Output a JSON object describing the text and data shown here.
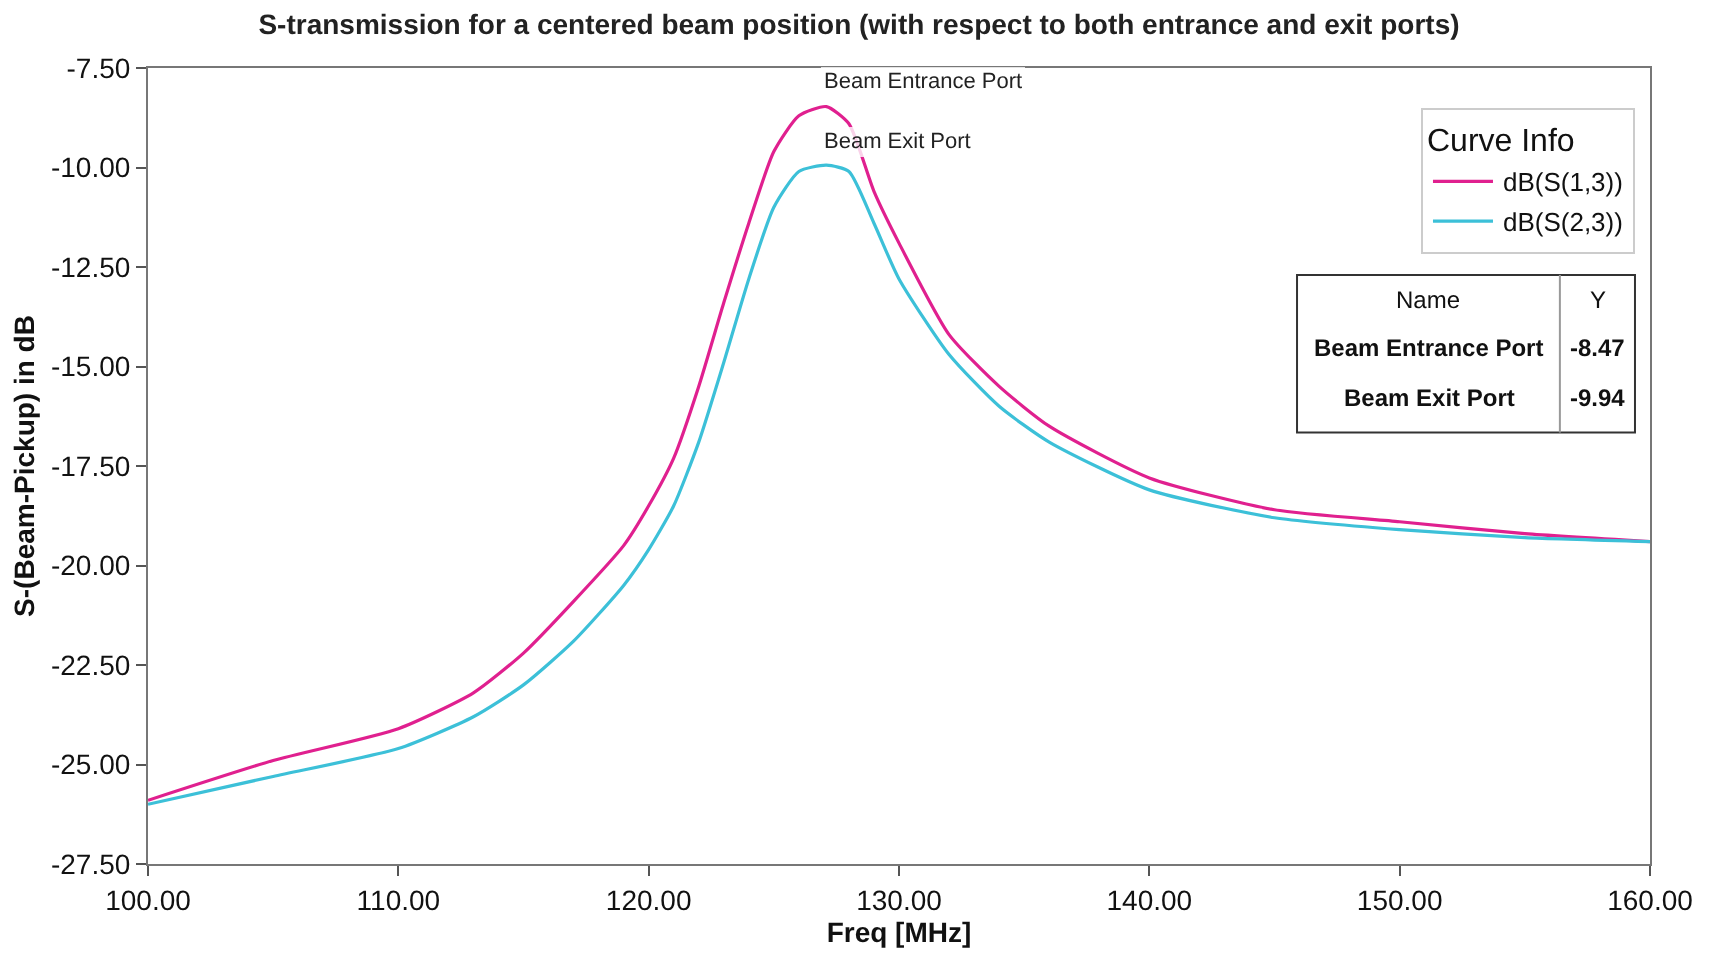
{
  "chart_data": {
    "type": "line",
    "title": "S-transmission for a centered beam position (with respect to both entrance and exit ports)",
    "xlabel": "Freq [MHz]",
    "ylabel": "S-(Beam-Pickup) in dB",
    "legend_title": "Curve Info",
    "x": [
      100,
      105,
      110,
      113,
      115,
      117,
      119,
      120,
      121,
      122,
      123,
      124,
      125,
      126,
      127.1,
      128,
      129,
      130,
      132,
      134,
      136,
      140,
      145,
      150,
      155,
      160
    ],
    "series": [
      {
        "name": "dB(S(1,3))",
        "color": "#e0208f",
        "values": [
          -25.9,
          -24.9,
          -24.1,
          -23.2,
          -22.2,
          -20.9,
          -19.5,
          -18.5,
          -17.3,
          -15.5,
          -13.4,
          -11.4,
          -9.6,
          -8.7,
          -8.47,
          -8.9,
          -10.6,
          -11.9,
          -14.2,
          -15.5,
          -16.5,
          -17.8,
          -18.6,
          -18.9,
          -19.2,
          -19.4
        ]
      },
      {
        "name": "dB(S(2,3))",
        "color": "#3cc0d8",
        "values": [
          -26.0,
          -25.3,
          -24.6,
          -23.8,
          -23.0,
          -21.9,
          -20.5,
          -19.6,
          -18.5,
          -16.9,
          -14.9,
          -12.8,
          -11.0,
          -10.1,
          -9.94,
          -10.1,
          -11.4,
          -12.8,
          -14.7,
          -16.0,
          -16.9,
          -18.1,
          -18.8,
          -19.1,
          -19.3,
          -19.4
        ]
      }
    ],
    "annotations": [
      {
        "text": "Beam Entrance Port",
        "x": 127.1,
        "y": -8.47
      },
      {
        "text": "Beam Exit Port",
        "x": 127.1,
        "y": -9.94
      },
      "Name",
      "Y",
      "Beam Entrance Port",
      "-8.47",
      "Beam Exit Port",
      "-9.94"
    ],
    "xlim": [
      100,
      160
    ],
    "ylim": [
      -27.5,
      -7.5
    ],
    "xticks": [
      {
        "value": 100,
        "label": "100.00"
      },
      {
        "value": 110,
        "label": "110.00"
      },
      {
        "value": 120,
        "label": "120.00"
      },
      {
        "value": 130,
        "label": "130.00"
      },
      {
        "value": 140,
        "label": "140.00"
      },
      {
        "value": 150,
        "label": "150.00"
      },
      {
        "value": 160,
        "label": "160.00"
      }
    ],
    "yticks": [
      {
        "value": -27.5,
        "label": "-27.50"
      },
      {
        "value": -25,
        "label": "-25.00"
      },
      {
        "value": -22.5,
        "label": "-22.50"
      },
      {
        "value": -20,
        "label": "-20.00"
      },
      {
        "value": -17.5,
        "label": "-17.50"
      },
      {
        "value": -15,
        "label": "-15.00"
      },
      {
        "value": -12.5,
        "label": "-12.50"
      },
      {
        "value": -10,
        "label": "-10.00"
      },
      {
        "value": -7.5,
        "label": "-7.50"
      }
    ],
    "legend": "top right",
    "line_style": "solid",
    "marker": "none"
  }
}
